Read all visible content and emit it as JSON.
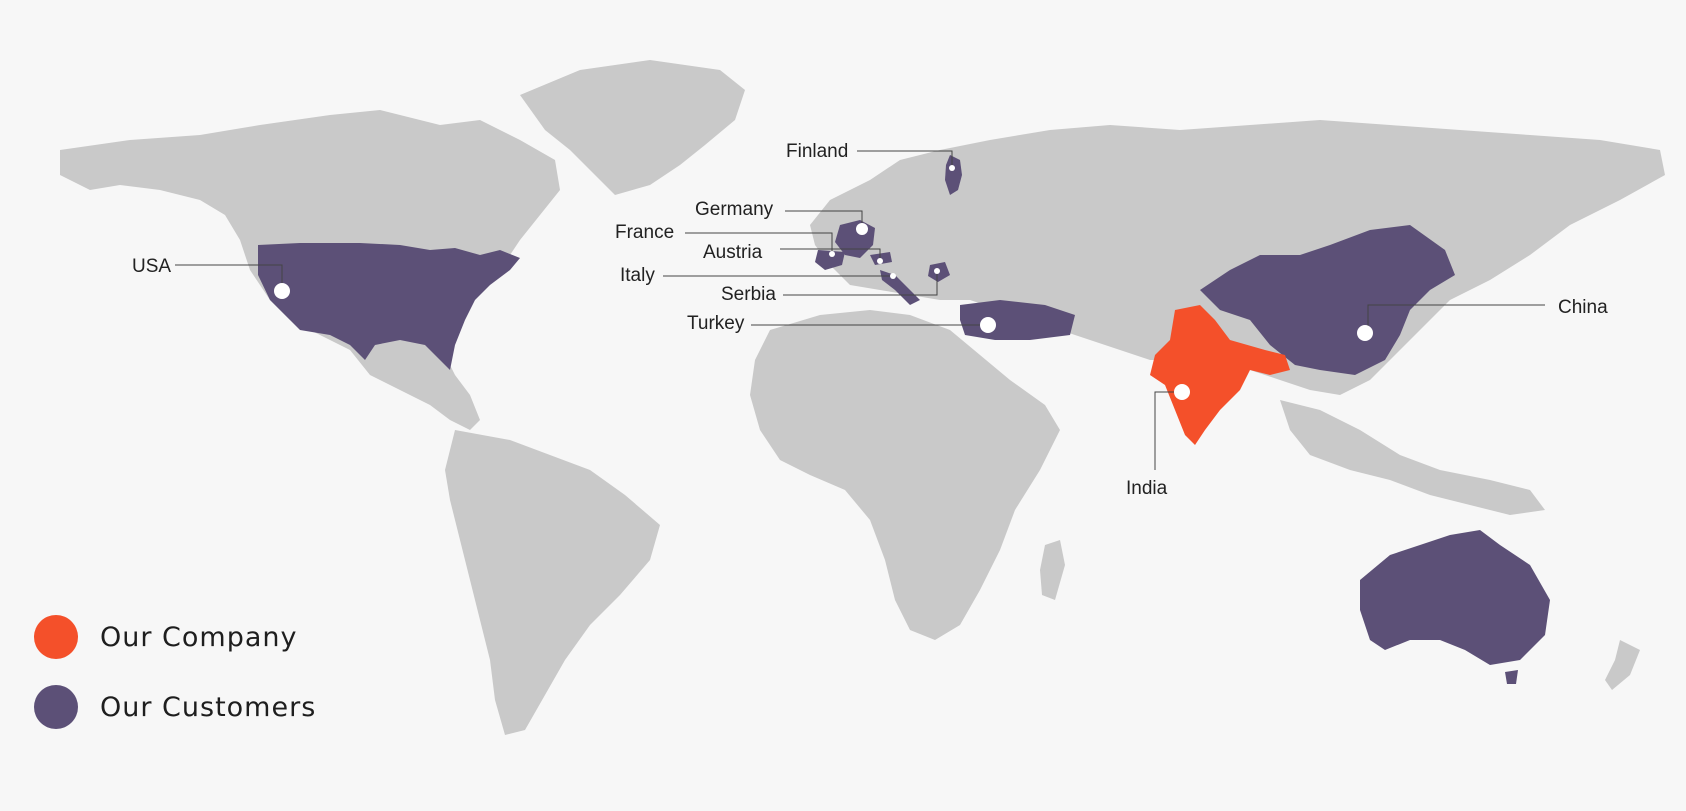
{
  "colors": {
    "background": "#f7f7f7",
    "land": "#c9c9c9",
    "customer": "#5c5077",
    "company": "#f4502a",
    "marker": "#ffffff"
  },
  "labels": {
    "finland": "Finland",
    "germany": "Germany",
    "france": "France",
    "austria": "Austria",
    "usa": "USA",
    "italy": "Italy",
    "serbia": "Serbia",
    "turkey": "Turkey",
    "china": "China",
    "india": "India"
  },
  "legend": {
    "company": "Our Company",
    "customers": "Our Customers"
  }
}
